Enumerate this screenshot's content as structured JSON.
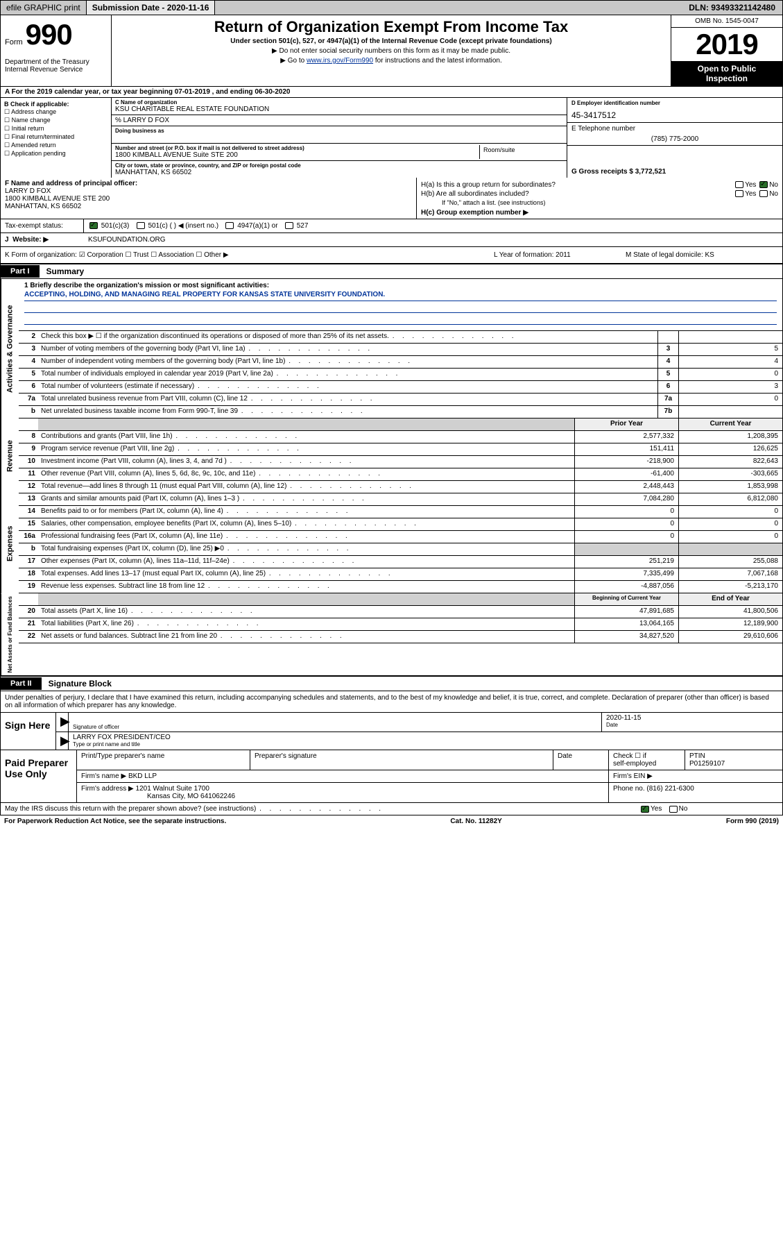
{
  "topbar": {
    "efile": "efile GRAPHIC print",
    "submission_label": "Submission Date - 2020-11-16",
    "dln_label": "DLN: 93493321142480"
  },
  "header": {
    "form_word": "Form",
    "form_num": "990",
    "title": "Return of Organization Exempt From Income Tax",
    "subtitle": "Under section 501(c), 527, or 4947(a)(1) of the Internal Revenue Code (except private foundations)",
    "line1": "▶ Do not enter social security numbers on this form as it may be made public.",
    "line2_pre": "▶ Go to ",
    "line2_link": "www.irs.gov/Form990",
    "line2_post": " for instructions and the latest information.",
    "dept": "Department of the Treasury",
    "irs": "Internal Revenue Service",
    "omb": "OMB No. 1545-0047",
    "year": "2019",
    "otp1": "Open to Public",
    "otp2": "Inspection"
  },
  "period": "A For the 2019 calendar year, or tax year beginning 07-01-2019   , and ending 06-30-2020",
  "colB": {
    "hdr": "B Check if applicable:",
    "i1": "☐ Address change",
    "i2": "☐ Name change",
    "i3": "☐ Initial return",
    "i4": "☐ Final return/terminated",
    "i5": "☐ Amended return",
    "i6": "☐ Application pending"
  },
  "colC": {
    "name_lbl": "C Name of organization",
    "name": "KSU CHARITABLE REAL ESTATE FOUNDATION",
    "co_lbl": "% LARRY D FOX",
    "dba_lbl": "Doing business as",
    "addr_lbl": "Number and street (or P.O. box if mail is not delivered to street address)",
    "addr": "1800 KIMBALL AVENUE Suite STE 200",
    "room_lbl": "Room/suite",
    "city_lbl": "City or town, state or province, country, and ZIP or foreign postal code",
    "city": "MANHATTAN, KS  66502"
  },
  "colD": {
    "ein_lbl": "D Employer identification number",
    "ein": "45-3417512",
    "tel_lbl": "E Telephone number",
    "tel": "(785) 775-2000",
    "gross_lbl": "G Gross receipts $ 3,772,521"
  },
  "rowF": {
    "lbl": "F  Name and address of principal officer:",
    "name": "LARRY D FOX",
    "addr1": "1800 KIMBALL AVENUE STE 200",
    "addr2": "MANHATTAN, KS  66502",
    "ha": "H(a)  Is this a group return for subordinates?",
    "hb": "H(b)  Are all subordinates included?",
    "hb_note": "If \"No,\" attach a list. (see instructions)",
    "hc": "H(c)  Group exemption number ▶",
    "yes": "Yes",
    "no": "No"
  },
  "tax": {
    "lbl": "Tax-exempt status:",
    "c1": "501(c)(3)",
    "c2": "501(c) (   ) ◀ (insert no.)",
    "c3": "4947(a)(1) or",
    "c4": "527"
  },
  "web": {
    "lbl": "Website: ▶",
    "val": "KSUFOUNDATION.ORG"
  },
  "krow": {
    "k": "K Form of organization:  ☑ Corporation  ☐ Trust  ☐ Association  ☐ Other ▶",
    "l": "L Year of formation: 2011",
    "m": "M State of legal domicile: KS"
  },
  "part1": {
    "tag": "Part I",
    "title": "Summary"
  },
  "mission": {
    "lbl": "1  Briefly describe the organization's mission or most significant activities:",
    "text": "ACCEPTING, HOLDING, AND MANAGING REAL PROPERTY FOR KANSAS STATE UNIVERSITY FOUNDATION."
  },
  "gov_lines": [
    {
      "n": "2",
      "t": "Check this box ▶ ☐  if the organization discontinued its operations or disposed of more than 25% of its net assets.",
      "c": "",
      "v": ""
    },
    {
      "n": "3",
      "t": "Number of voting members of the governing body (Part VI, line 1a)",
      "c": "3",
      "v": "5"
    },
    {
      "n": "4",
      "t": "Number of independent voting members of the governing body (Part VI, line 1b)",
      "c": "4",
      "v": "4"
    },
    {
      "n": "5",
      "t": "Total number of individuals employed in calendar year 2019 (Part V, line 2a)",
      "c": "5",
      "v": "0"
    },
    {
      "n": "6",
      "t": "Total number of volunteers (estimate if necessary)",
      "c": "6",
      "v": "3"
    },
    {
      "n": "7a",
      "t": "Total unrelated business revenue from Part VIII, column (C), line 12",
      "c": "7a",
      "v": "0"
    },
    {
      "n": "b",
      "t": "Net unrelated business taxable income from Form 990-T, line 39",
      "c": "7b",
      "v": ""
    }
  ],
  "rev_hdr": {
    "py": "Prior Year",
    "cy": "Current Year"
  },
  "rev_lines": [
    {
      "n": "8",
      "t": "Contributions and grants (Part VIII, line 1h)",
      "py": "2,577,332",
      "cy": "1,208,395"
    },
    {
      "n": "9",
      "t": "Program service revenue (Part VIII, line 2g)",
      "py": "151,411",
      "cy": "126,625"
    },
    {
      "n": "10",
      "t": "Investment income (Part VIII, column (A), lines 3, 4, and 7d )",
      "py": "-218,900",
      "cy": "822,643"
    },
    {
      "n": "11",
      "t": "Other revenue (Part VIII, column (A), lines 5, 6d, 8c, 9c, 10c, and 11e)",
      "py": "-61,400",
      "cy": "-303,665"
    },
    {
      "n": "12",
      "t": "Total revenue—add lines 8 through 11 (must equal Part VIII, column (A), line 12)",
      "py": "2,448,443",
      "cy": "1,853,998"
    }
  ],
  "exp_lines": [
    {
      "n": "13",
      "t": "Grants and similar amounts paid (Part IX, column (A), lines 1–3 )",
      "py": "7,084,280",
      "cy": "6,812,080"
    },
    {
      "n": "14",
      "t": "Benefits paid to or for members (Part IX, column (A), line 4)",
      "py": "0",
      "cy": "0"
    },
    {
      "n": "15",
      "t": "Salaries, other compensation, employee benefits (Part IX, column (A), lines 5–10)",
      "py": "0",
      "cy": "0"
    },
    {
      "n": "16a",
      "t": "Professional fundraising fees (Part IX, column (A), line 11e)",
      "py": "0",
      "cy": "0"
    },
    {
      "n": "b",
      "t": "Total fundraising expenses (Part IX, column (D), line 25) ▶0",
      "py": "",
      "cy": "",
      "shade": true
    },
    {
      "n": "17",
      "t": "Other expenses (Part IX, column (A), lines 11a–11d, 11f–24e)",
      "py": "251,219",
      "cy": "255,088"
    },
    {
      "n": "18",
      "t": "Total expenses. Add lines 13–17 (must equal Part IX, column (A), line 25)",
      "py": "7,335,499",
      "cy": "7,067,168"
    },
    {
      "n": "19",
      "t": "Revenue less expenses. Subtract line 18 from line 12",
      "py": "-4,887,056",
      "cy": "-5,213,170"
    }
  ],
  "na_hdr": {
    "py": "Beginning of Current Year",
    "cy": "End of Year"
  },
  "na_lines": [
    {
      "n": "20",
      "t": "Total assets (Part X, line 16)",
      "py": "47,891,685",
      "cy": "41,800,506"
    },
    {
      "n": "21",
      "t": "Total liabilities (Part X, line 26)",
      "py": "13,064,165",
      "cy": "12,189,900"
    },
    {
      "n": "22",
      "t": "Net assets or fund balances. Subtract line 21 from line 20",
      "py": "34,827,520",
      "cy": "29,610,606"
    }
  ],
  "part2": {
    "tag": "Part II",
    "title": "Signature Block"
  },
  "perjury": "Under penalties of perjury, I declare that I have examined this return, including accompanying schedules and statements, and to the best of my knowledge and belief, it is true, correct, and complete. Declaration of preparer (other than officer) is based on all information of which preparer has any knowledge.",
  "sign": {
    "lbl": "Sign Here",
    "sig_of": "Signature of officer",
    "date_lbl": "Date",
    "date": "2020-11-15",
    "name": "LARRY FOX PRESIDENT/CEO",
    "name_lbl": "Type or print name and title"
  },
  "prep": {
    "lbl": "Paid Preparer Use Only",
    "c1": "Print/Type preparer's name",
    "c2": "Preparer's signature",
    "c3": "Date",
    "c4a": "Check ☐ if",
    "c4b": "self-employed",
    "c5": "PTIN",
    "ptin": "P01259107",
    "firm_lbl": "Firm's name    ▶",
    "firm": "BKD LLP",
    "ein_lbl": "Firm's EIN ▶",
    "addr_lbl": "Firm's address ▶",
    "addr1": "1201 Walnut Suite 1700",
    "addr2": "Kansas City, MO  641062246",
    "phone_lbl": "Phone no. (816) 221-6300"
  },
  "discuss": {
    "q": "May the IRS discuss this return with the preparer shown above? (see instructions)",
    "yes": "Yes",
    "no": "No"
  },
  "footer": {
    "l": "For Paperwork Reduction Act Notice, see the separate instructions.",
    "c": "Cat. No. 11282Y",
    "r": "Form 990 (2019)"
  },
  "vtabs": {
    "gov": "Activities & Governance",
    "rev": "Revenue",
    "exp": "Expenses",
    "na": "Net Assets or Fund Balances"
  }
}
